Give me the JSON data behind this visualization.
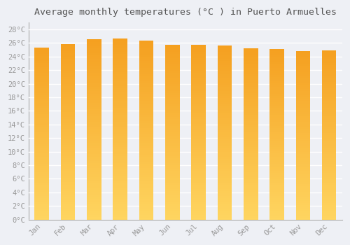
{
  "title": "Average monthly temperatures (°C ) in Puerto Armuelles",
  "months": [
    "Jan",
    "Feb",
    "Mar",
    "Apr",
    "May",
    "Jun",
    "Jul",
    "Aug",
    "Sep",
    "Oct",
    "Nov",
    "Dec"
  ],
  "values": [
    25.3,
    25.8,
    26.5,
    26.7,
    26.3,
    25.7,
    25.7,
    25.6,
    25.2,
    25.1,
    24.8,
    24.9
  ],
  "ylim": [
    0,
    29
  ],
  "yticks": [
    0,
    2,
    4,
    6,
    8,
    10,
    12,
    14,
    16,
    18,
    20,
    22,
    24,
    26,
    28
  ],
  "bar_color_top": "#F5A623",
  "bar_color_bottom": "#FFD966",
  "background_color": "#eef0f5",
  "grid_color": "#ffffff",
  "title_fontsize": 9.5,
  "tick_fontsize": 7.5,
  "font_family": "monospace",
  "bar_width": 0.55,
  "n_gradient_segments": 80
}
